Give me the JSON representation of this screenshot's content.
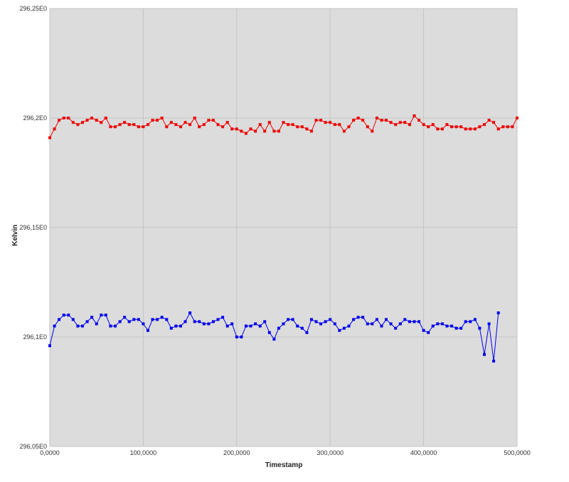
{
  "chart_data": {
    "type": "line",
    "title": "",
    "xlabel": "Timestamp",
    "ylabel": "Kelvin",
    "xlim": [
      0,
      500000
    ],
    "ylim": [
      296.05,
      296.25
    ],
    "grid": true,
    "x_tick_labels": [
      "0,0000",
      "100,0000",
      "200,0000",
      "300,0000",
      "400,0000",
      "500,0000"
    ],
    "x_tick_values": [
      0,
      100000,
      200000,
      300000,
      400000,
      500000
    ],
    "y_tick_labels": [
      "296,05E0",
      "296,1E0",
      "296,15E0",
      "296,2E0",
      "296,25E0"
    ],
    "y_tick_values": [
      296.05,
      296.1,
      296.15,
      296.2,
      296.25
    ],
    "x_step": 5000,
    "series": [
      {
        "color": "#ee0000",
        "values": [
          296.191,
          296.195,
          296.199,
          296.2,
          296.2,
          296.198,
          296.197,
          296.198,
          296.199,
          296.2,
          296.199,
          296.198,
          296.2,
          296.196,
          296.196,
          296.197,
          296.198,
          296.197,
          296.197,
          296.196,
          296.196,
          296.197,
          296.199,
          296.199,
          296.2,
          296.196,
          296.198,
          296.197,
          296.196,
          296.198,
          296.197,
          296.2,
          296.196,
          296.197,
          296.199,
          296.199,
          296.197,
          296.196,
          296.198,
          296.195,
          296.195,
          296.194,
          296.193,
          296.195,
          296.194,
          296.197,
          296.194,
          296.198,
          296.194,
          296.194,
          296.198,
          296.197,
          296.197,
          296.196,
          296.196,
          296.195,
          296.194,
          296.199,
          296.199,
          296.198,
          296.198,
          296.197,
          296.197,
          296.194,
          296.196,
          296.199,
          296.2,
          296.199,
          296.196,
          296.194,
          296.2,
          296.199,
          296.199,
          296.198,
          296.197,
          296.198,
          296.198,
          296.197,
          296.201,
          296.199,
          296.197,
          296.196,
          296.197,
          296.195,
          296.195,
          296.197,
          296.196,
          296.196,
          296.196,
          296.195,
          296.195,
          296.195,
          296.196,
          296.197,
          296.199,
          296.198,
          296.195,
          296.196,
          296.196,
          296.196,
          296.2
        ]
      },
      {
        "color": "#0000ee",
        "values": [
          296.096,
          296.105,
          296.108,
          296.11,
          296.11,
          296.108,
          296.105,
          296.105,
          296.107,
          296.109,
          296.106,
          296.11,
          296.11,
          296.105,
          296.105,
          296.107,
          296.109,
          296.107,
          296.108,
          296.108,
          296.106,
          296.103,
          296.108,
          296.108,
          296.109,
          296.108,
          296.104,
          296.105,
          296.105,
          296.107,
          296.111,
          296.107,
          296.107,
          296.106,
          296.106,
          296.107,
          296.108,
          296.109,
          296.105,
          296.106,
          296.1,
          296.1,
          296.105,
          296.105,
          296.106,
          296.105,
          296.107,
          296.102,
          296.099,
          296.104,
          296.106,
          296.108,
          296.108,
          296.105,
          296.104,
          296.102,
          296.108,
          296.107,
          296.106,
          296.107,
          296.108,
          296.106,
          296.103,
          296.104,
          296.105,
          296.108,
          296.109,
          296.109,
          296.106,
          296.106,
          296.108,
          296.105,
          296.108,
          296.106,
          296.104,
          296.106,
          296.108,
          296.107,
          296.107,
          296.107,
          296.103,
          296.102,
          296.105,
          296.106,
          296.106,
          296.105,
          296.105,
          296.104,
          296.104,
          296.107,
          296.107,
          296.108,
          296.104,
          296.092,
          296.106,
          296.089,
          296.111
        ]
      }
    ]
  }
}
